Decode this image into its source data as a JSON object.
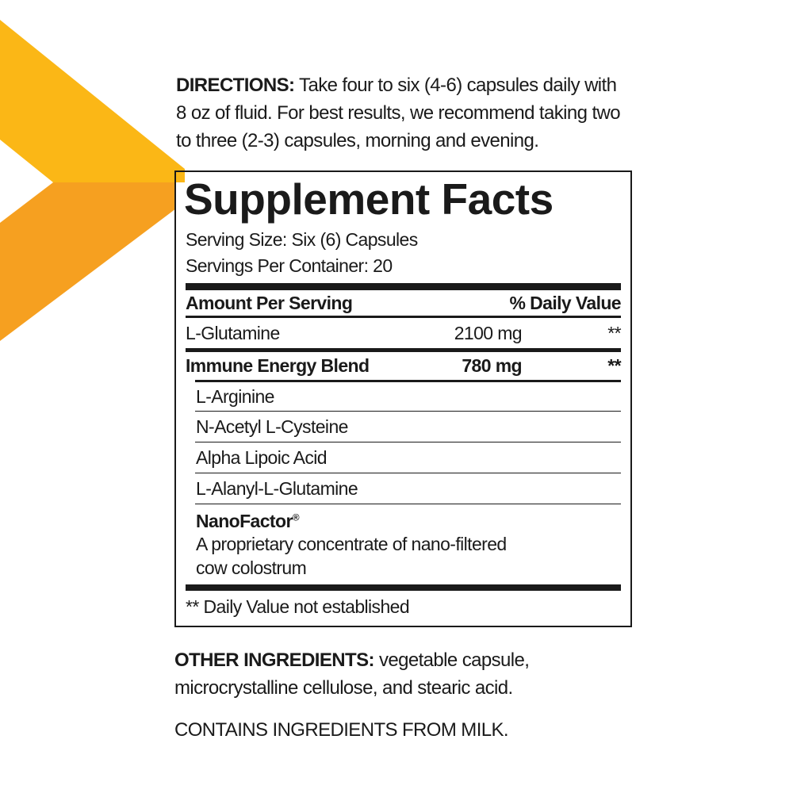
{
  "colors": {
    "chevron_top": "#FBB716",
    "chevron_bottom": "#F6A020",
    "text": "#1a1a1a"
  },
  "directions": {
    "label": "DIRECTIONS:",
    "lines": [
      " Take four to six (4-6) capsules daily with",
      "8 oz of fluid. For best results, we recommend taking two",
      "to three (2-3) capsules, morning and evening."
    ]
  },
  "facts": {
    "title": "Supplement Facts",
    "serving_size": "Serving Size: Six (6) Capsules",
    "servings_per_container": "Servings Per Container: 20",
    "header_amount": "Amount Per Serving",
    "header_dv": "% Daily Value",
    "rows": [
      {
        "name": "L-Glutamine",
        "amount": "2100 mg",
        "dv": "**"
      },
      {
        "name": "Immune Energy Blend",
        "amount": "780 mg",
        "dv": "**"
      }
    ],
    "blend_items": [
      "L-Arginine",
      "N-Acetyl L-Cysteine",
      "Alpha Lipoic Acid",
      "L-Alanyl-L-Glutamine"
    ],
    "nanofactor": {
      "name": "NanoFactor",
      "mark": "®",
      "desc1": "A proprietary concentrate of nano-filtered",
      "desc2": "cow colostrum"
    },
    "footnote": "** Daily Value not established"
  },
  "other": {
    "label": "OTHER INGREDIENTS:",
    "line1": " vegetable capsule,",
    "line2": "microcrystalline cellulose, and stearic acid."
  },
  "allergen": "CONTAINS INGREDIENTS FROM MILK."
}
